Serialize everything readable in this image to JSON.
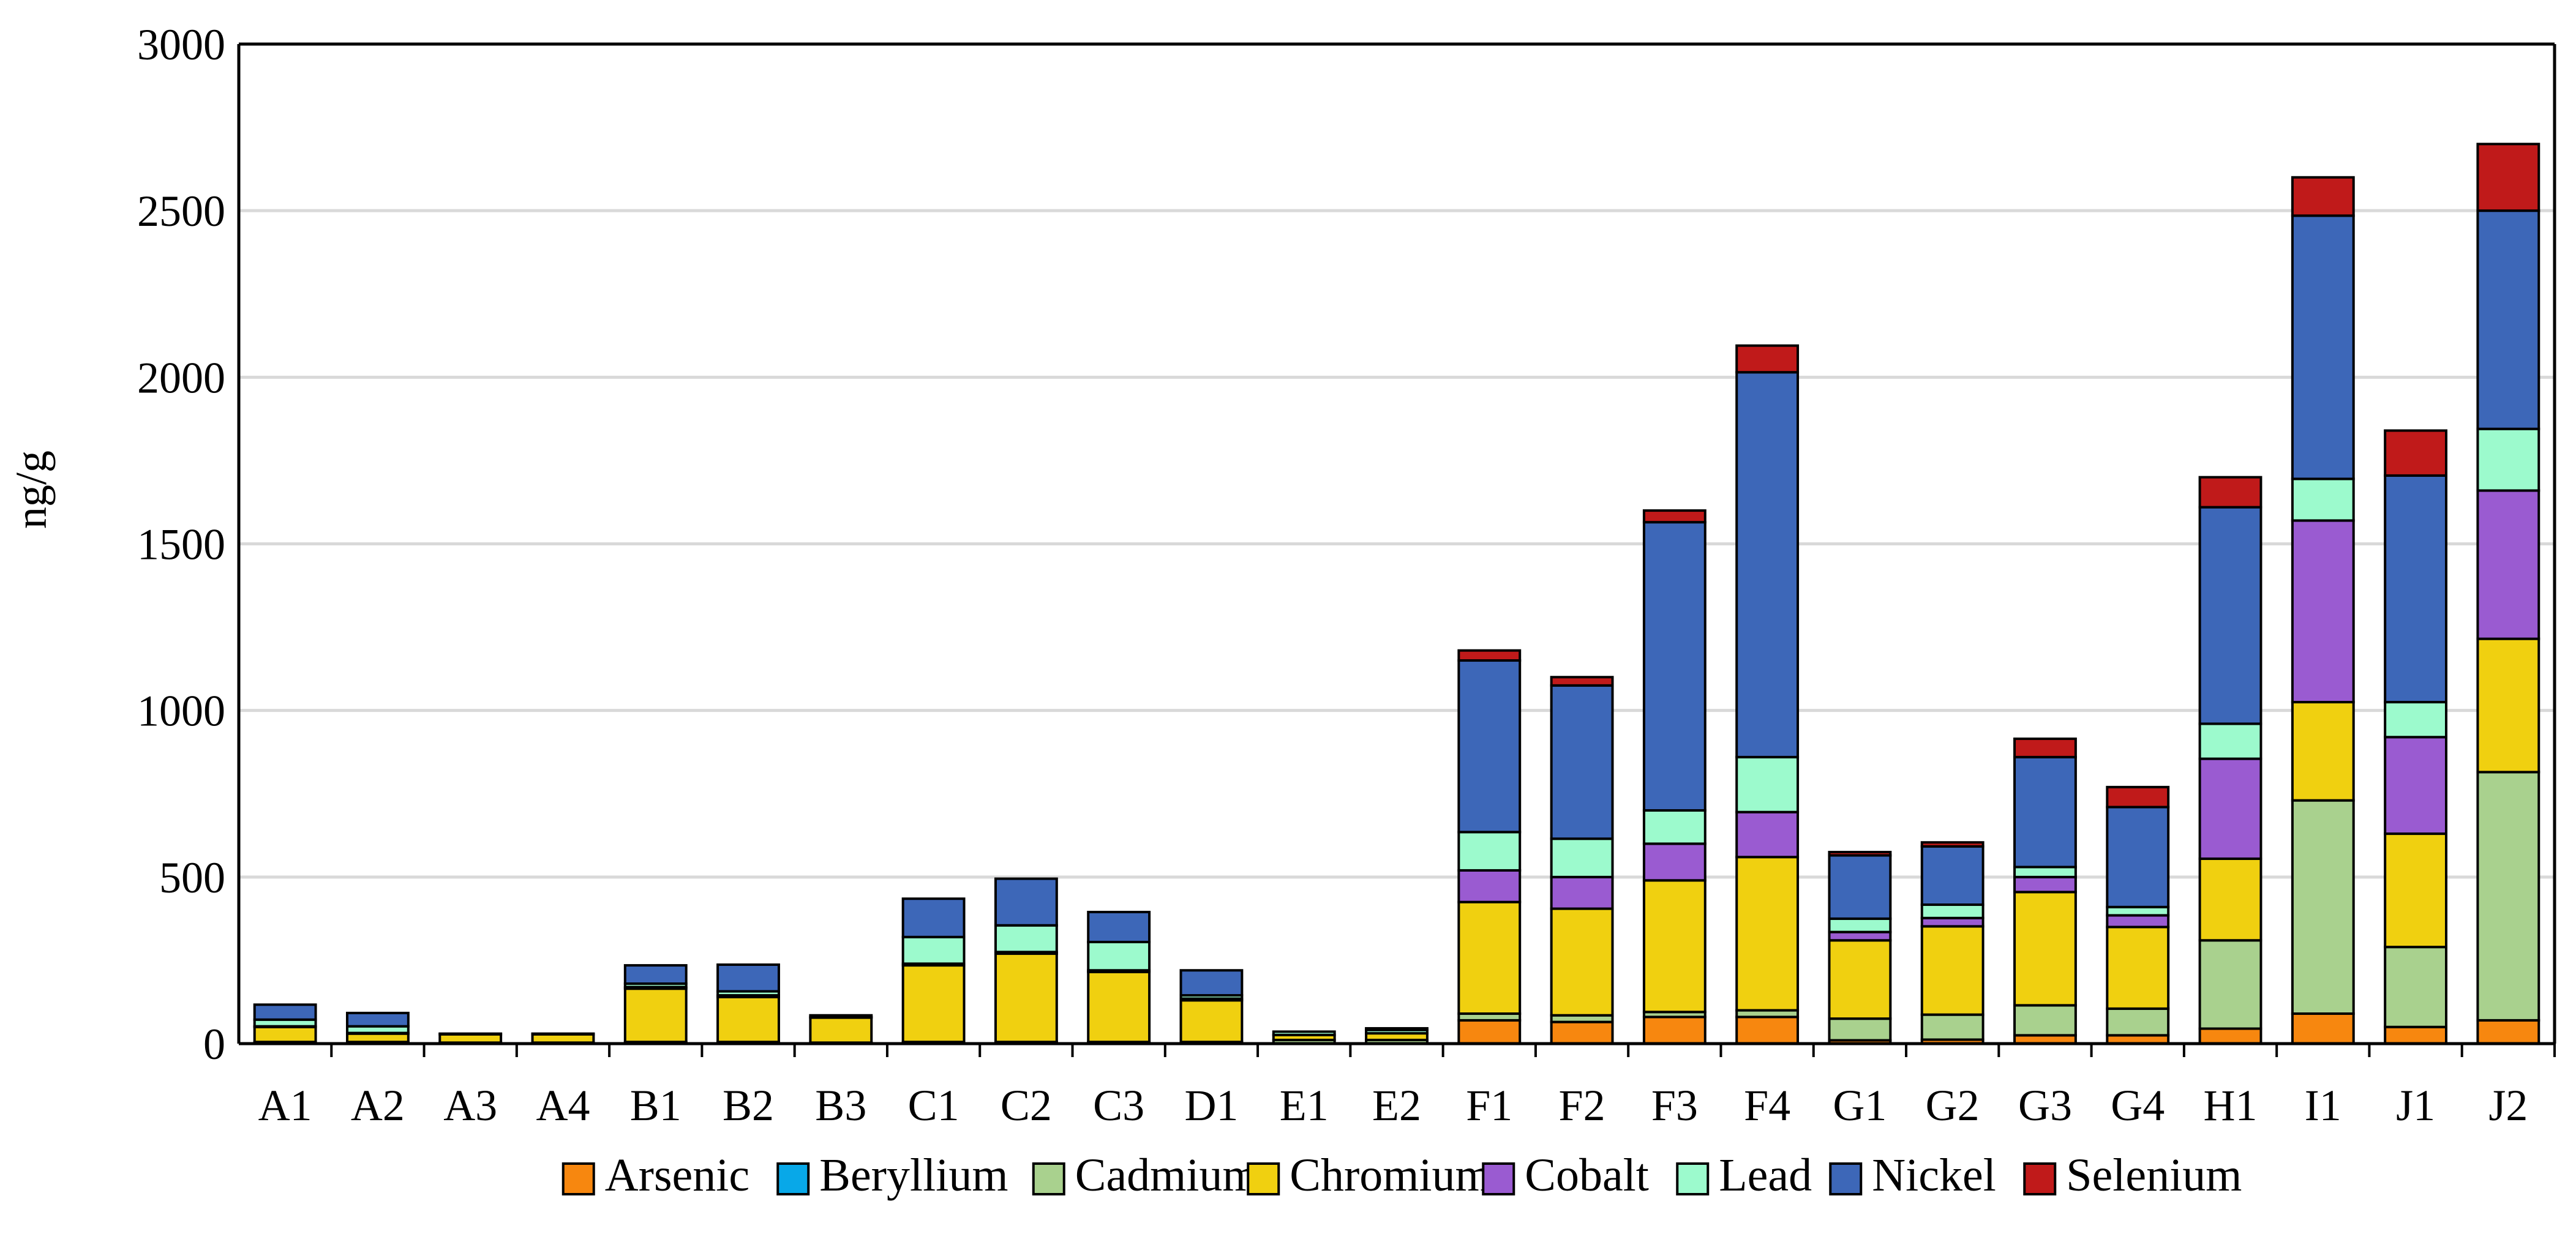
{
  "chart_data": {
    "type": "bar",
    "stacked": true,
    "title": "",
    "xlabel": "",
    "ylabel": "ng/g",
    "ylim": [
      0,
      3000
    ],
    "yticks": [
      0,
      500,
      1000,
      1500,
      2000,
      2500,
      3000
    ],
    "grid": "horizontal",
    "legend_position": "bottom",
    "categories": [
      "A1",
      "A2",
      "A3",
      "A4",
      "B1",
      "B2",
      "B3",
      "C1",
      "C2",
      "C3",
      "D1",
      "E1",
      "E2",
      "F1",
      "F2",
      "F3",
      "F4",
      "G1",
      "G2",
      "G3",
      "G4",
      "H1",
      "I1",
      "J1",
      "J2"
    ],
    "series": [
      {
        "name": "Arsenic",
        "color": "#f7870f",
        "values": [
          2,
          2,
          1,
          1,
          2,
          2,
          1,
          2,
          2,
          2,
          2,
          1,
          1,
          70,
          65,
          80,
          80,
          10,
          12,
          25,
          25,
          45,
          90,
          50,
          70
        ]
      },
      {
        "name": "Beryllium",
        "color": "#08a8e8",
        "values": [
          0,
          0,
          0,
          0,
          0,
          0,
          0,
          0,
          0,
          0,
          0,
          0,
          0,
          0,
          0,
          0,
          0,
          0,
          0,
          0,
          0,
          0,
          0,
          0,
          0
        ]
      },
      {
        "name": "Cadmium",
        "color": "#a9d18e",
        "values": [
          3,
          3,
          2,
          2,
          3,
          3,
          2,
          3,
          3,
          3,
          3,
          10,
          10,
          20,
          20,
          15,
          20,
          65,
          75,
          90,
          80,
          265,
          640,
          240,
          745
        ]
      },
      {
        "name": "Chromium",
        "color": "#f0d010",
        "values": [
          45,
          25,
          25,
          25,
          160,
          135,
          75,
          230,
          265,
          210,
          125,
          15,
          20,
          335,
          320,
          395,
          460,
          235,
          265,
          340,
          245,
          245,
          295,
          340,
          400
        ]
      },
      {
        "name": "Cobalt",
        "color": "#9a5bd1",
        "values": [
          2,
          2,
          0,
          0,
          5,
          5,
          0,
          5,
          5,
          5,
          5,
          0,
          0,
          95,
          95,
          110,
          135,
          25,
          25,
          45,
          35,
          300,
          545,
          290,
          445
        ]
      },
      {
        "name": "Lead",
        "color": "#9cfacd",
        "values": [
          20,
          20,
          2,
          2,
          10,
          12,
          2,
          80,
          80,
          85,
          10,
          10,
          10,
          115,
          115,
          100,
          165,
          40,
          40,
          30,
          25,
          105,
          125,
          105,
          185
        ]
      },
      {
        "name": "Nickel",
        "color": "#3d67b8",
        "values": [
          45,
          40,
          0,
          0,
          55,
          80,
          5,
          115,
          140,
          90,
          75,
          0,
          5,
          515,
          460,
          865,
          1155,
          190,
          175,
          330,
          300,
          650,
          790,
          680,
          655
        ]
      },
      {
        "name": "Selenium",
        "color": "#c01a1a",
        "values": [
          0,
          0,
          0,
          0,
          0,
          0,
          0,
          0,
          0,
          0,
          0,
          0,
          0,
          30,
          25,
          35,
          80,
          10,
          12,
          55,
          60,
          90,
          115,
          135,
          200
        ]
      }
    ]
  }
}
